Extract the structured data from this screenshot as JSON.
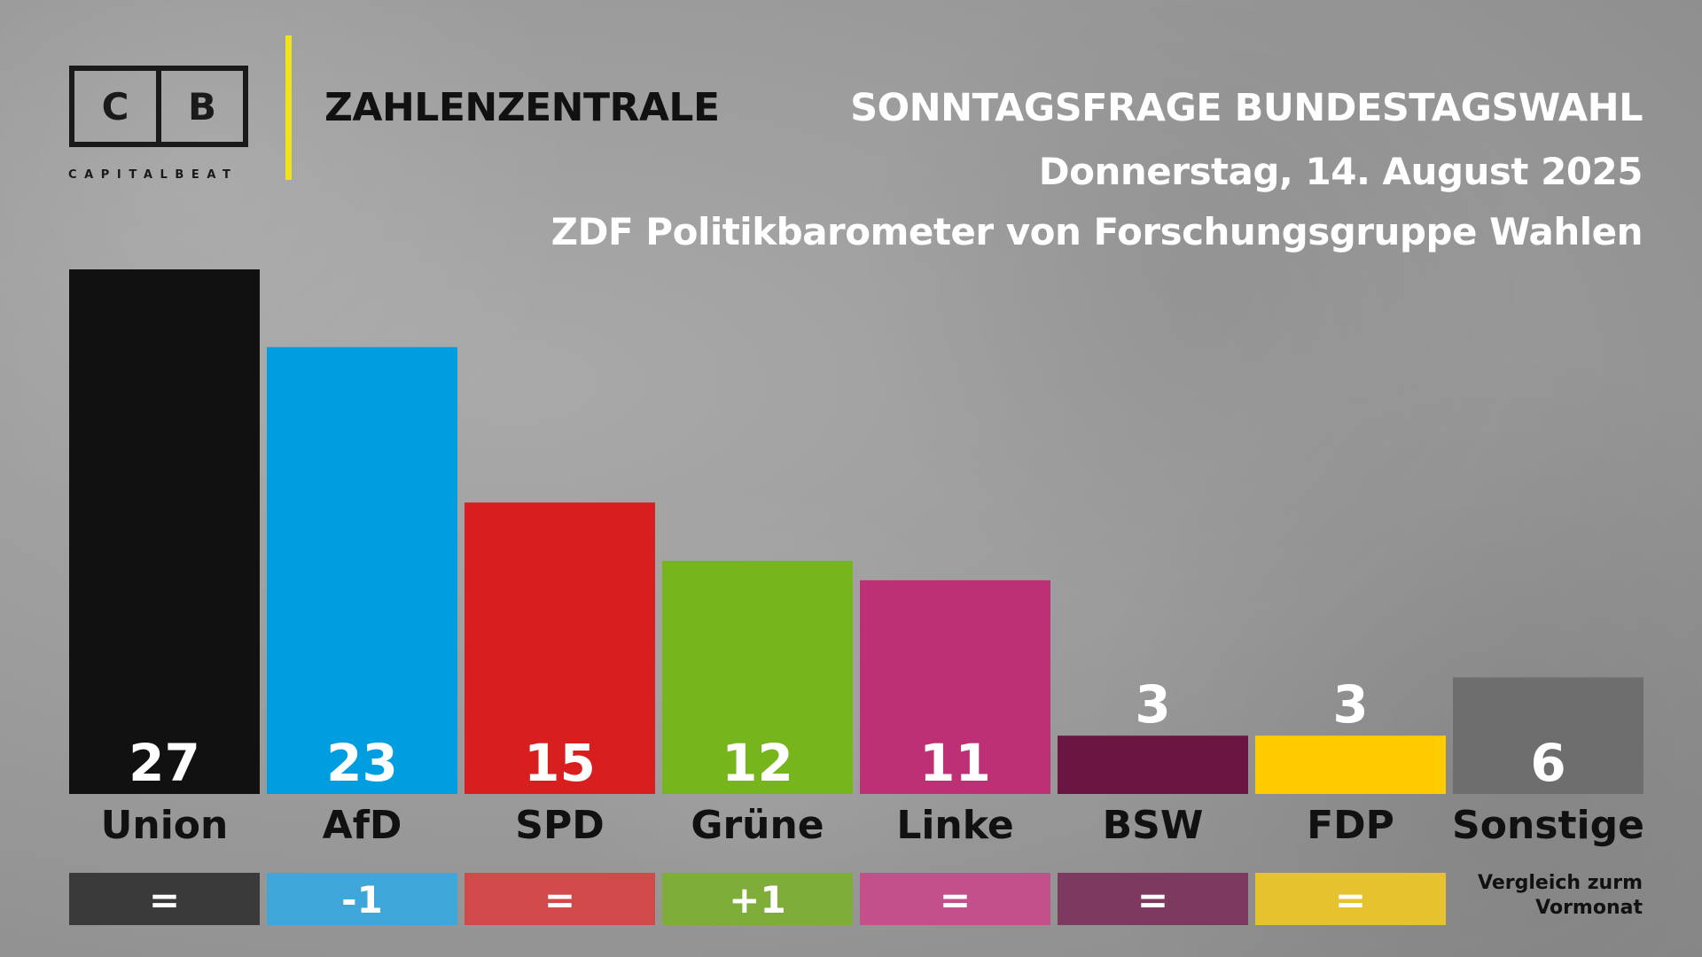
{
  "brand": {
    "logo_left": "C",
    "logo_right": "B",
    "logo_text": "CAPITALBEAT",
    "section": "ZAHLENZENTRALE",
    "accent_color": "#f2e21b"
  },
  "header": {
    "title": "SONNTAGSFRAGE BUNDESTAGSWAHL",
    "date": "Donnerstag, 14. August 2025",
    "source": "ZDF Politikbarometer von Forschungsgruppe Wahlen"
  },
  "comparison_note": "Vergleich zurm Vormonat",
  "chart_data": {
    "type": "bar",
    "title": "SONNTAGSFRAGE BUNDESTAGSWAHL",
    "categories": [
      "Union",
      "AfD",
      "SPD",
      "Grüne",
      "Linke",
      "BSW",
      "FDP",
      "Sonstige"
    ],
    "values": [
      27,
      23,
      15,
      12,
      11,
      3,
      3,
      6
    ],
    "changes": [
      "=",
      "-1",
      "=",
      "+1",
      "=",
      "=",
      "=",
      ""
    ],
    "colors": [
      "#111111",
      "#009ee0",
      "#d81e1e",
      "#76b51b",
      "#be3075",
      "#6b1640",
      "#ffcc00",
      "#6e6e6e"
    ],
    "change_colors": [
      "#3a3a3a",
      "#3ea6d8",
      "#d04a4a",
      "#7ead3a",
      "#c4508b",
      "#7e3a5e",
      "#e6c22e",
      ""
    ],
    "ylim": [
      0,
      27
    ],
    "grid": false,
    "legend": "none"
  }
}
